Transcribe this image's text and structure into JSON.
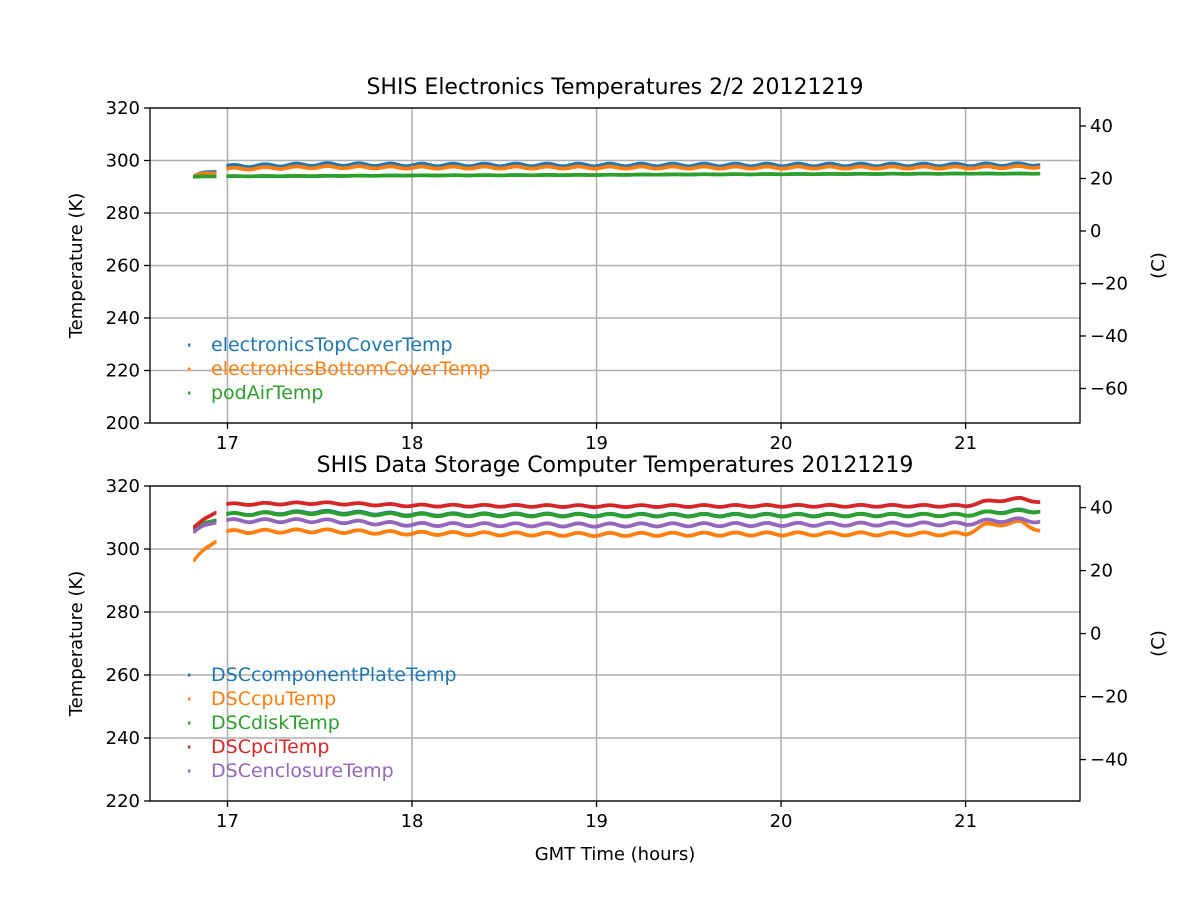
{
  "chart_data": [
    {
      "type": "scatter",
      "title": "SHIS Electronics Temperatures 2/2 20121219",
      "xlabel": "",
      "ylabel": "Temperature (K)",
      "y2label": "(C)",
      "xlim": [
        16.58,
        21.62
      ],
      "ylim": [
        200,
        320
      ],
      "y2lim": [
        -73.15,
        46.85
      ],
      "xticks": [
        17,
        18,
        19,
        20,
        21
      ],
      "yticks": [
        200,
        220,
        240,
        260,
        280,
        300,
        320
      ],
      "y2ticks": [
        -60,
        -40,
        -20,
        0,
        20,
        40
      ],
      "y2ticklabels": [
        "−60",
        "−40",
        "−20",
        "0",
        "20",
        "40"
      ],
      "grid": true,
      "legend_position": "lower-left",
      "series": [
        {
          "name": "electronicsTopCoverTemp",
          "color": "#1f77b4",
          "x": [
            16.82,
            16.94,
            16.95,
            17.0,
            17.5,
            18.0,
            18.5,
            19.0,
            19.5,
            20.0,
            20.5,
            21.0,
            21.4
          ],
          "y": [
            294.0,
            296.2,
            null,
            297.8,
            298.5,
            298.3,
            298.3,
            298.3,
            298.3,
            298.3,
            298.3,
            298.3,
            298.5
          ],
          "wobble": 0.5
        },
        {
          "name": "electronicsBottomCoverTemp",
          "color": "#ff7f0e",
          "x": [
            16.82,
            16.94,
            16.95,
            17.0,
            17.5,
            18.0,
            18.5,
            19.0,
            19.5,
            20.0,
            20.5,
            21.0,
            21.4
          ],
          "y": [
            294.0,
            295.5,
            null,
            296.8,
            297.5,
            297.3,
            297.3,
            297.3,
            297.3,
            297.3,
            297.3,
            297.3,
            297.6
          ],
          "wobble": 0.4
        },
        {
          "name": "podAirTemp",
          "color": "#2ca02c",
          "x": [
            16.82,
            16.94,
            16.95,
            17.0,
            17.5,
            18.0,
            18.5,
            19.0,
            19.5,
            20.0,
            20.5,
            21.0,
            21.4
          ],
          "y": [
            293.8,
            294.0,
            null,
            294.0,
            294.1,
            294.3,
            294.4,
            294.5,
            294.7,
            294.8,
            294.9,
            295.0,
            295.0
          ],
          "wobble": 0.05
        }
      ]
    },
    {
      "type": "scatter",
      "title": "SHIS Data Storage Computer Temperatures 20121219",
      "xlabel": "GMT Time (hours)",
      "ylabel": "Temperature (K)",
      "y2label": "(C)",
      "xlim": [
        16.58,
        21.62
      ],
      "ylim": [
        220,
        320
      ],
      "y2lim": [
        -53.15,
        46.85
      ],
      "xticks": [
        17,
        18,
        19,
        20,
        21
      ],
      "yticks": [
        220,
        240,
        260,
        280,
        300,
        320
      ],
      "y2ticks": [
        -40,
        -20,
        0,
        20,
        40
      ],
      "y2ticklabels": [
        "−40",
        "−20",
        "0",
        "20",
        "40"
      ],
      "grid": true,
      "legend_position": "lower-left",
      "series": [
        {
          "name": "DSCcomponentPlateTemp",
          "color": "#1f77b4",
          "x": [
            16.82,
            16.94,
            16.95,
            17.0,
            17.5,
            18.0,
            19.0,
            20.0,
            21.0,
            21.1,
            21.3,
            21.4
          ],
          "y": [
            306.5,
            309.5,
            null,
            311.0,
            311.8,
            311.0,
            310.8,
            310.8,
            310.8,
            311.5,
            312.2,
            312.0
          ],
          "wobble": 0.4
        },
        {
          "name": "DSCcpuTemp",
          "color": "#ff7f0e",
          "x": [
            16.82,
            16.94,
            16.95,
            17.0,
            17.5,
            18.0,
            19.0,
            20.0,
            21.0,
            21.1,
            21.3,
            21.4
          ],
          "y": [
            296.5,
            303.0,
            null,
            305.5,
            305.8,
            305.0,
            304.6,
            304.8,
            304.8,
            307.5,
            308.5,
            306.0
          ],
          "wobble": 0.5
        },
        {
          "name": "DSCdiskTemp",
          "color": "#2ca02c",
          "x": [
            16.82,
            16.94,
            16.95,
            17.0,
            17.5,
            18.0,
            19.0,
            20.0,
            21.0,
            21.1,
            21.3,
            21.4
          ],
          "y": [
            306.5,
            309.5,
            null,
            311.0,
            311.5,
            310.8,
            310.7,
            310.7,
            310.8,
            311.5,
            312.0,
            312.0
          ],
          "wobble": 0.4
        },
        {
          "name": "DSCpciTemp",
          "color": "#d62728",
          "x": [
            16.82,
            16.94,
            16.95,
            17.0,
            17.5,
            18.0,
            19.0,
            20.0,
            21.0,
            21.1,
            21.3,
            21.4
          ],
          "y": [
            307.0,
            312.0,
            null,
            314.2,
            314.6,
            313.8,
            313.6,
            313.7,
            313.7,
            315.0,
            316.0,
            315.0
          ],
          "wobble": 0.3
        },
        {
          "name": "DSCenclosureTemp",
          "color": "#9467bd",
          "x": [
            16.82,
            16.94,
            16.95,
            17.0,
            17.5,
            18.0,
            19.0,
            20.0,
            21.0,
            21.1,
            21.3,
            21.4
          ],
          "y": [
            305.5,
            309.0,
            null,
            309.0,
            309.0,
            307.8,
            307.6,
            307.8,
            308.0,
            308.8,
            309.3,
            308.8
          ],
          "wobble": 0.5
        }
      ]
    }
  ]
}
